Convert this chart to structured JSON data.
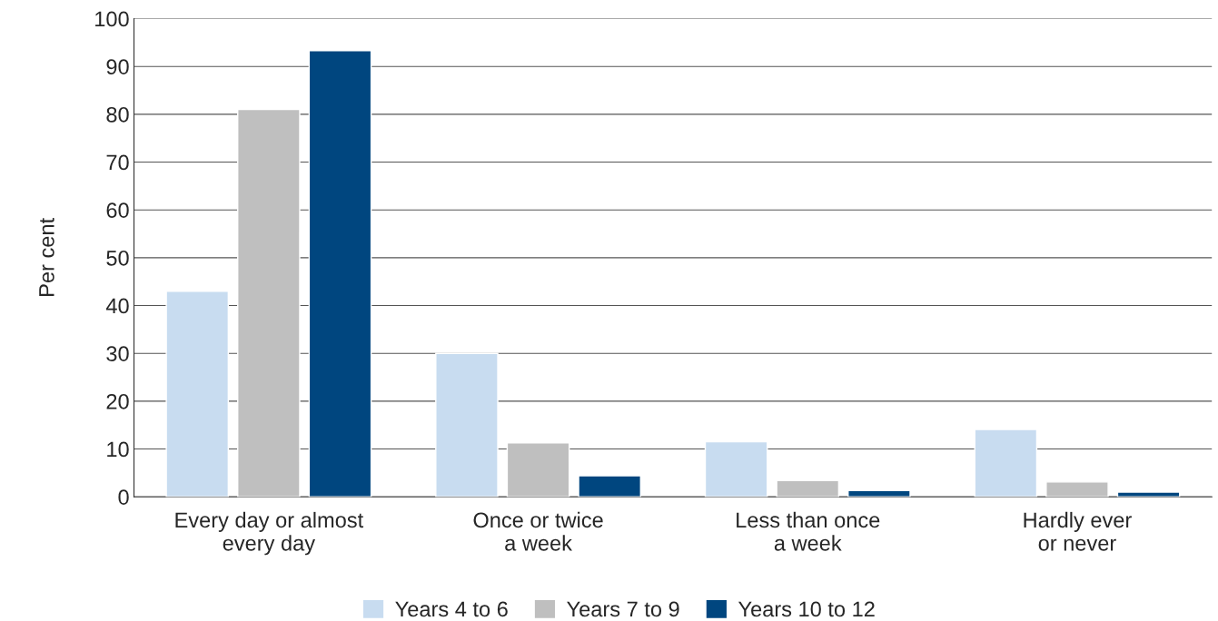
{
  "chart_data": {
    "type": "bar",
    "ylabel": "Per cent",
    "categories": [
      "Every day or almost\nevery day",
      "Once or twice\na week",
      "Less than once\na week",
      "Hardly ever\nor never"
    ],
    "series": [
      {
        "name": "Years 4 to 6",
        "color": "#c8dcf0",
        "values": [
          43,
          30,
          11.5,
          14.1
        ]
      },
      {
        "name": "Years 7 to 9",
        "color": "#bfbfbf",
        "values": [
          81,
          11.3,
          3.4,
          3.1
        ]
      },
      {
        "name": "Years 10 to 12",
        "color": "#00467f",
        "values": [
          93.3,
          4.4,
          1.3,
          1.0
        ]
      }
    ],
    "ylim": [
      0,
      100
    ],
    "yticks": [
      0,
      10,
      20,
      30,
      40,
      50,
      60,
      70,
      80,
      90,
      100
    ],
    "grid": "y",
    "legend": "bottom"
  }
}
